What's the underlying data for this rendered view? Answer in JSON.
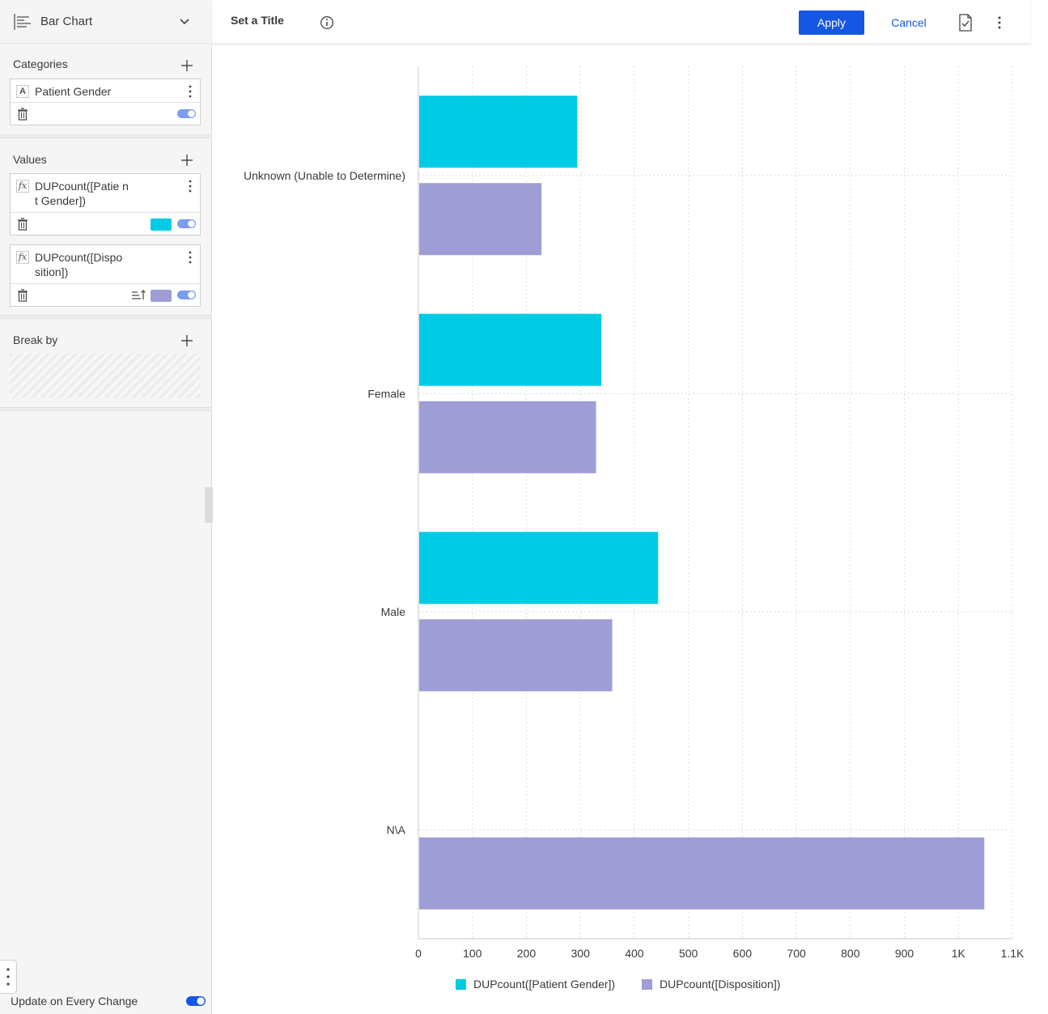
{
  "sidebar": {
    "chart_type_label": "Bar Chart",
    "categories": {
      "title": "Categories",
      "items": [
        {
          "kind_icon": "A",
          "label": "Patient Gender"
        }
      ]
    },
    "values": {
      "title": "Values",
      "items": [
        {
          "kind_icon": "fx",
          "label": "DUPcount([Patie nt Gender])",
          "color": "#00cbe5"
        },
        {
          "kind_icon": "fx",
          "label": "DUPcount([Dispo sition])",
          "color": "#9e9dd6"
        }
      ]
    },
    "break_by": {
      "title": "Break by"
    },
    "update_label": "Update on Every Change"
  },
  "toolbar": {
    "title_placeholder": "Set a Title",
    "apply_label": "Apply",
    "cancel_label": "Cancel"
  },
  "colors": {
    "accent": "#1557e2",
    "toggle": "#7b9cf0"
  },
  "chart_data": {
    "type": "bar",
    "orientation": "horizontal",
    "categories": [
      "Unknown (Unable to Determine)",
      "Female",
      "Male",
      "N\\A"
    ],
    "series": [
      {
        "name": "DUPcount([Patient Gender])",
        "color": "#00cbe5",
        "values": [
          294,
          339,
          444,
          0
        ]
      },
      {
        "name": "DUPcount([Disposition])",
        "color": "#9e9dd6",
        "values": [
          228,
          329,
          359,
          1048
        ]
      }
    ],
    "x_ticks": [
      "0",
      "100",
      "200",
      "300",
      "400",
      "500",
      "600",
      "700",
      "800",
      "900",
      "1K",
      "1.1K"
    ],
    "xlim": [
      0,
      1100
    ],
    "grid": true,
    "legend_position": "bottom"
  }
}
